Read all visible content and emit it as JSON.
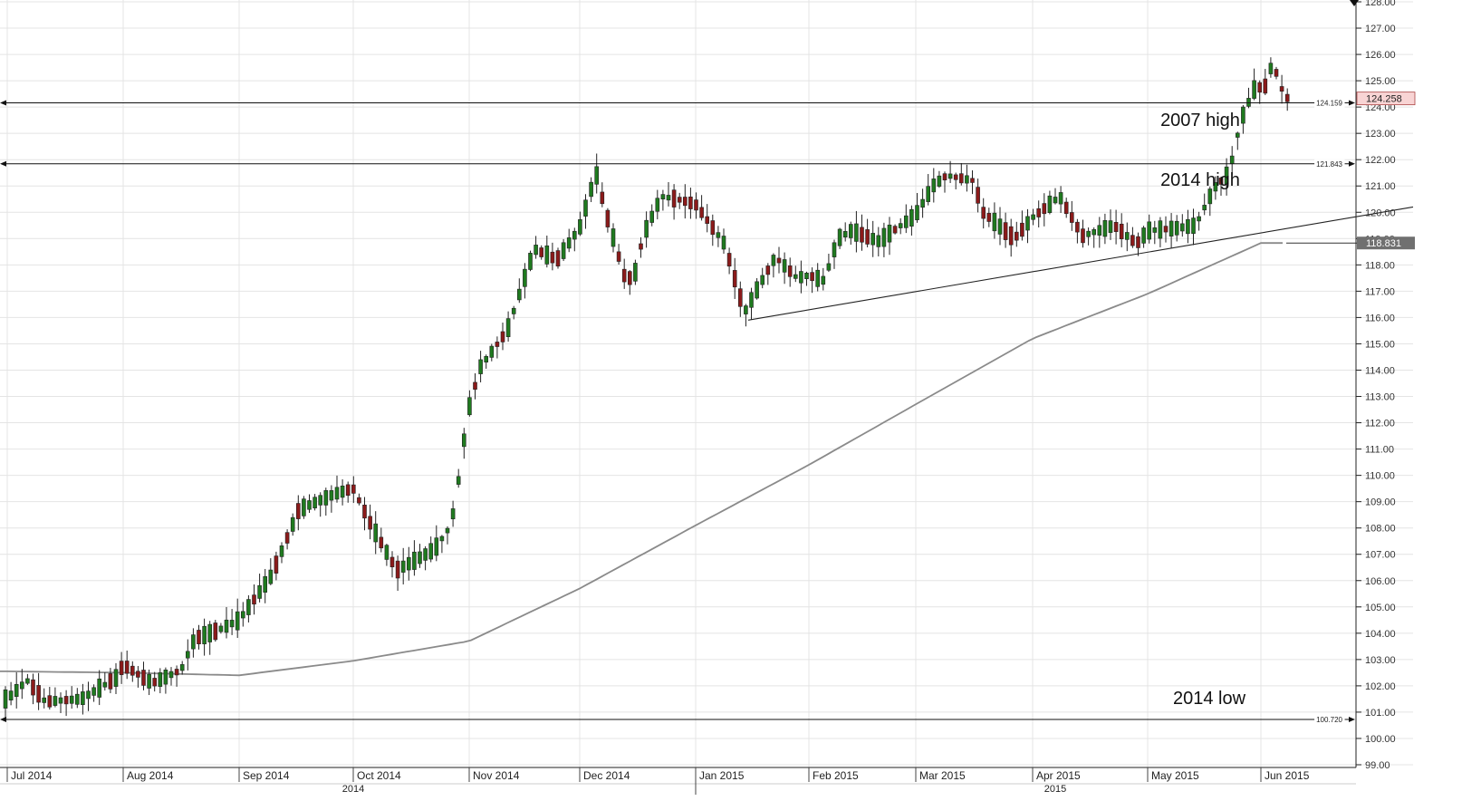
{
  "chart_data": {
    "type": "candlestick",
    "title": "",
    "xlabel": "",
    "ylabel": "",
    "ylim": [
      99.0,
      128.0
    ],
    "y_ticks": [
      "128.00",
      "127.00",
      "126.00",
      "125.00",
      "124.00",
      "123.00",
      "122.00",
      "121.00",
      "120.00",
      "119.00",
      "118.00",
      "117.00",
      "116.00",
      "115.00",
      "114.00",
      "113.00",
      "112.00",
      "111.00",
      "110.00",
      "109.00",
      "108.00",
      "107.00",
      "106.00",
      "105.00",
      "104.00",
      "103.00",
      "102.00",
      "101.00",
      "100.00",
      "99.00"
    ],
    "x_months": [
      "Jul 2014",
      "Aug 2014",
      "Sep 2014",
      "Oct 2014",
      "Nov 2014",
      "Dec 2014",
      "Jan 2015",
      "Feb 2015",
      "Mar 2015",
      "Apr 2015",
      "May 2015",
      "Jun 2015"
    ],
    "x_years": [
      "2014",
      "2015"
    ],
    "grid": true,
    "current_price": "124.258",
    "moving_average_value": "118.831",
    "horizontal_levels": [
      {
        "value": 124.159,
        "label": "124.159",
        "annotation": "2007 high"
      },
      {
        "value": 121.843,
        "label": "121.843",
        "annotation": "2014 high"
      },
      {
        "value": 100.72,
        "label": "100.720",
        "annotation": "2014 low"
      }
    ],
    "trendline": {
      "from": {
        "date": "Jan 2015",
        "value": 115.9
      },
      "to": {
        "date": "Jun 2015",
        "value": 120.2
      }
    },
    "moving_average": [
      {
        "x": "Jul 2014",
        "y": 102.55
      },
      {
        "x": "Aug 2014",
        "y": 102.5
      },
      {
        "x": "Sep 2014",
        "y": 102.4
      },
      {
        "x": "Oct 2014",
        "y": 102.95
      },
      {
        "x": "Nov 2014",
        "y": 103.7
      },
      {
        "x": "Dec 2014",
        "y": 105.7
      },
      {
        "x": "Jan 2015",
        "y": 108.1
      },
      {
        "x": "Feb 2015",
        "y": 110.4
      },
      {
        "x": "Mar 2015",
        "y": 112.7
      },
      {
        "x": "Apr 2015",
        "y": 115.2
      },
      {
        "x": "May 2015",
        "y": 116.9
      },
      {
        "x": "Jun 2015",
        "y": 118.831
      }
    ],
    "closes": [
      {
        "x": "Jul 2014",
        "y": 101.5
      },
      {
        "x": "Aug 2014",
        "y": 102.8
      },
      {
        "x": "Sep 2014",
        "y": 104.5
      },
      {
        "x": "Oct 2014",
        "y": 109.5
      },
      {
        "x": "Nov 2014",
        "y": 112.0
      },
      {
        "x": "Dec 2014",
        "y": 119.4
      },
      {
        "x": "Jan 2015",
        "y": 120.3
      },
      {
        "x": "Feb 2015",
        "y": 117.6
      },
      {
        "x": "Mar 2015",
        "y": 119.9
      },
      {
        "x": "Apr 2015",
        "y": 119.8
      },
      {
        "x": "May 2015",
        "y": 119.3
      },
      {
        "x": "Jun 2015",
        "y": 124.258
      }
    ]
  }
}
